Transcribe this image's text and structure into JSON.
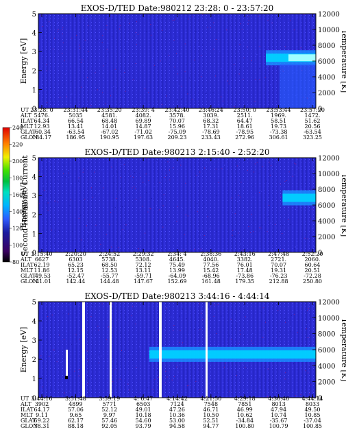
{
  "colorbar": {
    "label": "Second Harmonic Current",
    "ticks": [
      "80",
      "100",
      "120",
      "140",
      "160",
      "180",
      "200",
      "220",
      "240"
    ]
  },
  "chart_data": [
    {
      "type": "heatmap",
      "title": "EXOS-D/TED",
      "date": "Date:980212",
      "time_range": "23:28: 0 - 23:57:20",
      "ylabel": "Energy [eV]",
      "y2label": "Temperature [K]",
      "ylim": [
        0,
        5
      ],
      "y2lim": [
        0,
        12000
      ],
      "yticks": [
        "0",
        "1",
        "2",
        "3",
        "4",
        "5"
      ],
      "y2ticks": [
        "0",
        "2000",
        "4000",
        "6000",
        "8000",
        "10000",
        "12000"
      ],
      "ephemeris_labels": [
        "UT",
        "ALT",
        "ILAT",
        "MLT",
        "GLAT",
        "GLON"
      ],
      "ephemeris": [
        [
          "23:28: 0",
          "5476.",
          "64.34",
          "12.93",
          "-60.34",
          "184.17"
        ],
        [
          "23:31:44",
          "5035",
          "66.54",
          "13.41",
          "-63.54",
          "186.95"
        ],
        [
          "23:35:20",
          "4581.",
          "68.48",
          "14.01",
          "-67.02",
          "190.95"
        ],
        [
          "23:39: 4",
          "4082.",
          "69.89",
          "14.87",
          "-71.02",
          "197.63"
        ],
        [
          "23:42:40",
          "3578.",
          "70.07",
          "15.96",
          "-75.09",
          "209.23"
        ],
        [
          "23:46:24",
          "3039.",
          "68.32",
          "17.31",
          "-78.69",
          "233.43"
        ],
        [
          "23:50: 0",
          "2511.",
          "64.47",
          "18.61",
          "-78.95",
          "272.96"
        ],
        [
          "23:53:44",
          "1969.",
          "58.51",
          "19.73",
          "-73.38",
          "306.61"
        ],
        [
          "23:57:20",
          "1472.",
          "51.62",
          "20.56",
          "-63.54",
          "323.25"
        ]
      ],
      "temperature_band": {
        "start_fraction": 0.82,
        "level_K": 6500
      }
    },
    {
      "type": "heatmap",
      "title": "EXOS-D/TED",
      "date": "Date:980213",
      "time_range": "2:15:40 - 2:52:20",
      "ylabel": "Energy [eV]",
      "y2label": "Temperature [K]",
      "ylim": [
        0,
        5
      ],
      "y2lim": [
        0,
        12000
      ],
      "yticks": [
        "0",
        "1",
        "2",
        "3",
        "4",
        "5"
      ],
      "y2ticks": [
        "0",
        "2000",
        "4000",
        "6000",
        "8000",
        "10000",
        "12000"
      ],
      "ephemeris_labels": [
        "UT",
        "ALT",
        "ILAT",
        "MLT",
        "GLAT",
        "GLON"
      ],
      "ephemeris": [
        [
          "2:15:40",
          "6627",
          "62.19",
          "11.86",
          "-49.53",
          "141.01"
        ],
        [
          "2:20:20",
          "6303",
          "65.23",
          "12.15",
          "-52.47",
          "142.44"
        ],
        [
          "2:24:52",
          "5738.",
          "68.50",
          "12.53",
          "-55.77",
          "144.48"
        ],
        [
          "2:29:32",
          "5308.",
          "72.12",
          "13.11",
          "-59.71",
          "147.67"
        ],
        [
          "2:34: 4",
          "4645.",
          "75.49",
          "13.99",
          "-64.09",
          "152.69"
        ],
        [
          "2:38:36",
          "4040.",
          "77.56",
          "15.42",
          "-68.96",
          "161.48"
        ],
        [
          "2:43:16",
          "3382.",
          "76.01",
          "17.48",
          "-73.86",
          "179.35"
        ],
        [
          "2:47:48",
          "2721.",
          "70.07",
          "19.31",
          "-76.23",
          "212.88"
        ],
        [
          "2:52:20",
          "2060.",
          "60.64",
          "20.51",
          "-72.28",
          "250.80"
        ]
      ],
      "temperature_band": {
        "start_fraction": 0.88,
        "level_K": 7000
      }
    },
    {
      "type": "heatmap",
      "title": "EXOS-D/TED",
      "date": "Date:980213",
      "time_range": "3:44:16 - 4:44:14",
      "ylabel": "Energy [eV]",
      "y2label": "Temperature [K]",
      "ylim": [
        0,
        5
      ],
      "y2lim": [
        0,
        12000
      ],
      "yticks": [
        "0",
        "1",
        "2",
        "3",
        "4",
        "5"
      ],
      "y2ticks": [
        "0",
        "2000",
        "4000",
        "6000",
        "8000",
        "10000",
        "12000"
      ],
      "ephemeris_labels": [
        "UT",
        "ALT",
        "ILAT",
        "MLT",
        "GLAT",
        "GLON"
      ],
      "ephemeris": [
        [
          "3:44:16",
          "3902",
          "64.17",
          "9.11",
          "69.22",
          "78.31"
        ],
        [
          "3:51:48",
          "4899",
          "57.06",
          "9.65",
          "62.17",
          "88.18"
        ],
        [
          "3:59:19",
          "5771",
          "52.12",
          "9.97",
          "57.46",
          "92.05"
        ],
        [
          "4: 6:47",
          "6503",
          "49.01",
          "10.18",
          "54.60",
          "93.79"
        ],
        [
          "4:14:42",
          "7124",
          "47.26",
          "10.36",
          "53.00",
          "94.58"
        ],
        [
          "4:21:50",
          "7548",
          "46.71",
          "10.50",
          "52.51",
          "94.77"
        ],
        [
          "4:29:18",
          "7851",
          "46.99",
          "10.62",
          "-34.84",
          "100.80"
        ],
        [
          "4:36:46",
          "8013",
          "47.94",
          "10.74",
          "-35.67",
          "100.79"
        ],
        [
          "4:44:14",
          "8033",
          "49.50",
          "10.85",
          "-37.04",
          "100.85"
        ]
      ],
      "temperature_band": {
        "start_fraction": 0.4,
        "level_K": 5500
      }
    }
  ]
}
